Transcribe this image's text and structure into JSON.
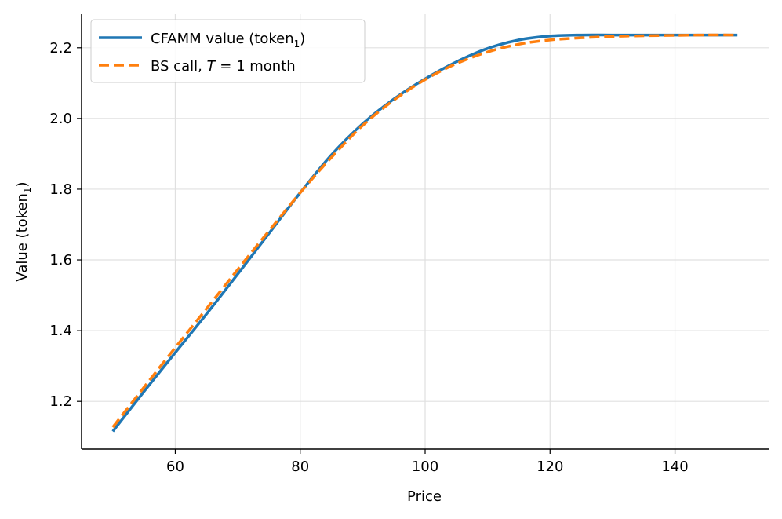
{
  "chart_data": {
    "type": "line",
    "xlabel": "Price",
    "ylabel": "Value (token",
    "ylabel_subscript": "1",
    "ylabel_suffix": ")",
    "xlim": [
      45,
      155
    ],
    "ylim": [
      1.065,
      2.295
    ],
    "xticks": [
      60,
      80,
      100,
      120,
      140
    ],
    "yticks": [
      1.2,
      1.4,
      1.6,
      1.8,
      2.0,
      2.2
    ],
    "xtick_labels": [
      "60",
      "80",
      "100",
      "120",
      "140"
    ],
    "ytick_labels": [
      "1.2",
      "1.4",
      "1.6",
      "1.8",
      "2.0",
      "2.2"
    ],
    "grid": true,
    "legend_position": "top-left",
    "legend": [
      {
        "text": "CFAMM value (token",
        "sub": "1",
        "suffix": ")"
      },
      {
        "text": "BS call, ",
        "italic": "T",
        "suffix": " = 1 month"
      }
    ],
    "series": [
      {
        "name": "CFAMM value (token1)",
        "color": "#1f77b4",
        "style": "solid",
        "x": [
          50,
          55,
          60,
          65,
          70,
          75,
          80,
          85,
          90,
          95,
          100,
          105,
          110,
          115,
          120,
          125,
          130,
          135,
          140,
          145,
          150
        ],
        "y": [
          1.115,
          1.228,
          1.338,
          1.447,
          1.56,
          1.675,
          1.79,
          1.897,
          1.985,
          2.055,
          2.112,
          2.16,
          2.198,
          2.222,
          2.233,
          2.236,
          2.236,
          2.236,
          2.236,
          2.236,
          2.236
        ]
      },
      {
        "name": "BS call, T = 1 month",
        "color": "#ff7f0e",
        "style": "dashed",
        "x": [
          50,
          55,
          60,
          65,
          70,
          75,
          80,
          85,
          90,
          95,
          100,
          105,
          110,
          115,
          120,
          125,
          130,
          135,
          140,
          145,
          150
        ],
        "y": [
          1.127,
          1.24,
          1.352,
          1.462,
          1.573,
          1.682,
          1.79,
          1.89,
          1.98,
          2.052,
          2.11,
          2.155,
          2.188,
          2.21,
          2.222,
          2.228,
          2.232,
          2.234,
          2.235,
          2.236,
          2.236
        ]
      }
    ]
  }
}
